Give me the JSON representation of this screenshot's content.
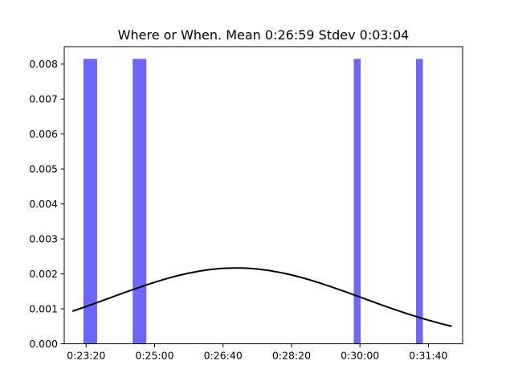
{
  "chart_data": {
    "type": "bar",
    "title": "Where or When. Mean 0:26:59 Stdev 0:03:04",
    "xlabel": "",
    "ylabel": "",
    "x_unit": "seconds (displayed as h:mm:ss)",
    "xlim": [
      1368,
      1950
    ],
    "ylim": [
      0,
      0.0085
    ],
    "grid": false,
    "bar_color": "#6a66ff",
    "curve_color": "#000000",
    "x_ticks": [
      1400,
      1500,
      1600,
      1700,
      1800,
      1900
    ],
    "x_tick_labels": [
      "0:23:20",
      "0:25:00",
      "0:26:40",
      "0:28:20",
      "0:30:00",
      "0:31:40"
    ],
    "y_ticks": [
      0,
      0.001,
      0.002,
      0.003,
      0.004,
      0.005,
      0.006,
      0.007,
      0.008
    ],
    "y_tick_labels": [
      "0.000",
      "0.001",
      "0.002",
      "0.003",
      "0.004",
      "0.005",
      "0.006",
      "0.007",
      "0.008"
    ],
    "bars": [
      {
        "x0": 1396,
        "x1": 1416,
        "height": 0.00815
      },
      {
        "x0": 1468,
        "x1": 1488,
        "height": 0.00815
      },
      {
        "x0": 1791,
        "x1": 1801,
        "height": 0.00815
      },
      {
        "x0": 1882,
        "x1": 1892,
        "height": 0.00815
      }
    ],
    "normal_curve": {
      "mean": 1619,
      "stdev": 184,
      "x_start": 1380,
      "x_end": 1934
    }
  }
}
